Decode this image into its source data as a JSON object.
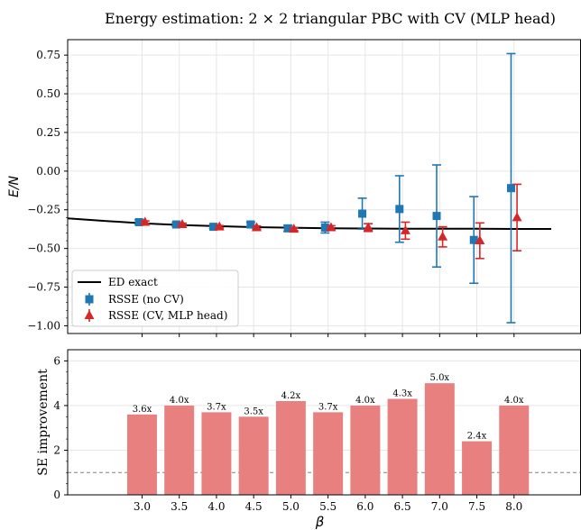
{
  "title": "Energy estimation: 2 × 2 triangular PBC with CV (MLP head)",
  "colors": {
    "ed_line": "#000000",
    "rsse_nocv": "#1f77b4",
    "rsse_cv": "#d62728",
    "bar_fill": "#e88080",
    "ref_line": "#808080",
    "grid": "#e6e6e6"
  },
  "chart_data": [
    {
      "type": "line",
      "xlabel": "",
      "ylabel": "E/N",
      "xlim": [
        2.0,
        8.9
      ],
      "ylim": [
        -1.05,
        0.85
      ],
      "grid": true,
      "legend_position": "lower-left",
      "yticks": [
        "0.75",
        "0.50",
        "0.25",
        "0.00",
        "−0.25",
        "−0.50",
        "−0.75",
        "−1.00"
      ],
      "ytick_values": [
        0.75,
        0.5,
        0.25,
        0.0,
        -0.25,
        -0.5,
        -0.75,
        -1.0
      ],
      "legend": [
        "ED exact",
        "RSSE (no CV)",
        "RSSE (CV, MLP head)"
      ],
      "series": [
        {
          "name": "ED exact",
          "kind": "line",
          "x": [
            2.0,
            2.5,
            3.0,
            3.5,
            4.0,
            4.5,
            5.0,
            5.5,
            6.0,
            6.5,
            7.0,
            7.5,
            8.0,
            8.5
          ],
          "y": [
            -0.305,
            -0.322,
            -0.337,
            -0.348,
            -0.356,
            -0.362,
            -0.366,
            -0.369,
            -0.371,
            -0.372,
            -0.373,
            -0.373,
            -0.374,
            -0.374
          ]
        },
        {
          "name": "RSSE (no CV)",
          "kind": "errorbar-square",
          "x": [
            3.0,
            3.5,
            4.0,
            4.5,
            5.0,
            5.5,
            6.0,
            6.5,
            7.0,
            7.5,
            8.0
          ],
          "y": [
            -0.33,
            -0.345,
            -0.36,
            -0.345,
            -0.37,
            -0.365,
            -0.275,
            -0.245,
            -0.29,
            -0.445,
            -0.11
          ],
          "err": [
            0.015,
            0.012,
            0.012,
            0.015,
            0.02,
            0.035,
            0.1,
            0.215,
            0.33,
            0.28,
            0.87
          ]
        },
        {
          "name": "RSSE (CV, MLP head)",
          "kind": "errorbar-triangle",
          "x": [
            3.0,
            3.5,
            4.0,
            4.5,
            5.0,
            5.5,
            6.0,
            6.5,
            7.0,
            7.5,
            8.0
          ],
          "y": [
            -0.33,
            -0.345,
            -0.36,
            -0.365,
            -0.375,
            -0.365,
            -0.365,
            -0.385,
            -0.425,
            -0.45,
            -0.3
          ],
          "err": [
            0.008,
            0.008,
            0.008,
            0.01,
            0.01,
            0.012,
            0.025,
            0.055,
            0.065,
            0.115,
            0.215
          ]
        }
      ]
    },
    {
      "type": "bar",
      "xlabel": "β",
      "ylabel": "SE improvement",
      "xlim": [
        2.0,
        8.9
      ],
      "ylim": [
        0,
        6.5
      ],
      "yticks": [
        "0",
        "2",
        "4",
        "6"
      ],
      "ytick_values": [
        0,
        2,
        4,
        6
      ],
      "reference_line": 1.0,
      "categories": [
        "3.0",
        "3.5",
        "4.0",
        "4.5",
        "5.0",
        "5.5",
        "6.0",
        "6.5",
        "7.0",
        "7.5",
        "8.0"
      ],
      "x": [
        3.0,
        3.5,
        4.0,
        4.5,
        5.0,
        5.5,
        6.0,
        6.5,
        7.0,
        7.5,
        8.0
      ],
      "values": [
        3.6,
        4.0,
        3.7,
        3.5,
        4.2,
        3.7,
        4.0,
        4.3,
        5.0,
        2.4,
        4.0
      ],
      "labels": [
        "3.6x",
        "4.0x",
        "3.7x",
        "3.5x",
        "4.2x",
        "3.7x",
        "4.0x",
        "4.3x",
        "5.0x",
        "2.4x",
        "4.0x"
      ]
    }
  ]
}
